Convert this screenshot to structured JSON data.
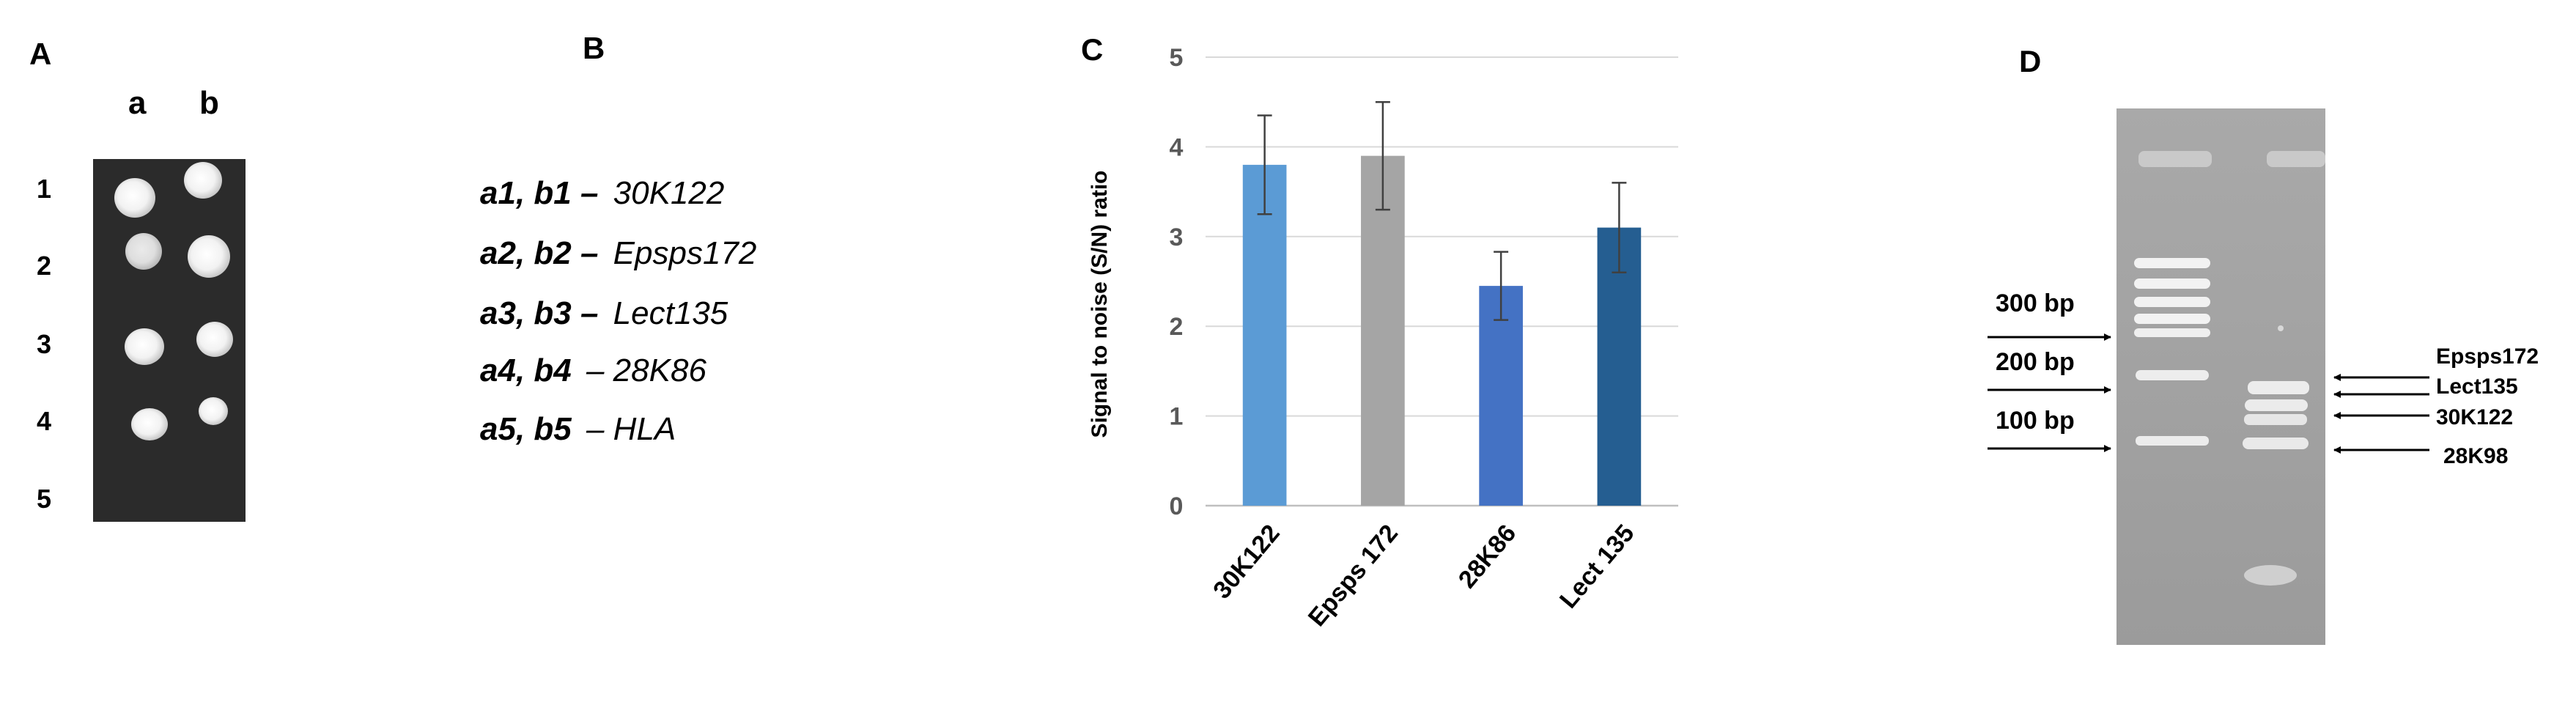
{
  "panel_a": {
    "label": "A",
    "columns": [
      "a",
      "b"
    ],
    "rows": [
      "1",
      "2",
      "3",
      "4",
      "5"
    ]
  },
  "panel_b": {
    "label": "B",
    "legend": [
      {
        "key": "a1, b1 –",
        "value": "30K122"
      },
      {
        "key": "a2, b2 –",
        "value": "Epsps172"
      },
      {
        "key": "a3, b3 –",
        "value": "Lect135"
      },
      {
        "key": "a4, b4",
        "value": "– 28K86"
      },
      {
        "key": "a5, b5",
        "value": "– HLA"
      }
    ]
  },
  "panel_c": {
    "label": "C"
  },
  "chart_data": {
    "type": "bar",
    "title": "",
    "xlabel": "",
    "ylabel": "Signal to noise (S/N) ratio",
    "categories": [
      "30K122",
      "Epsps 172",
      "28K86",
      "Lect 135"
    ],
    "values": [
      3.8,
      3.9,
      2.45,
      3.1
    ],
    "errors": [
      0.55,
      0.6,
      0.38,
      0.5
    ],
    "colors": [
      "#5b9bd5",
      "#a5a5a5",
      "#4472c4",
      "#255e91"
    ],
    "ylim": [
      0,
      5
    ],
    "yticks": [
      "0",
      "1",
      "2",
      "3",
      "4",
      "5"
    ],
    "grid": true
  },
  "panel_d": {
    "label": "D",
    "ladder_labels": [
      "300 bp",
      "200 bp",
      "100 bp"
    ],
    "band_labels": [
      "Epsps172",
      "Lect135",
      "30K122",
      "28K98"
    ]
  }
}
